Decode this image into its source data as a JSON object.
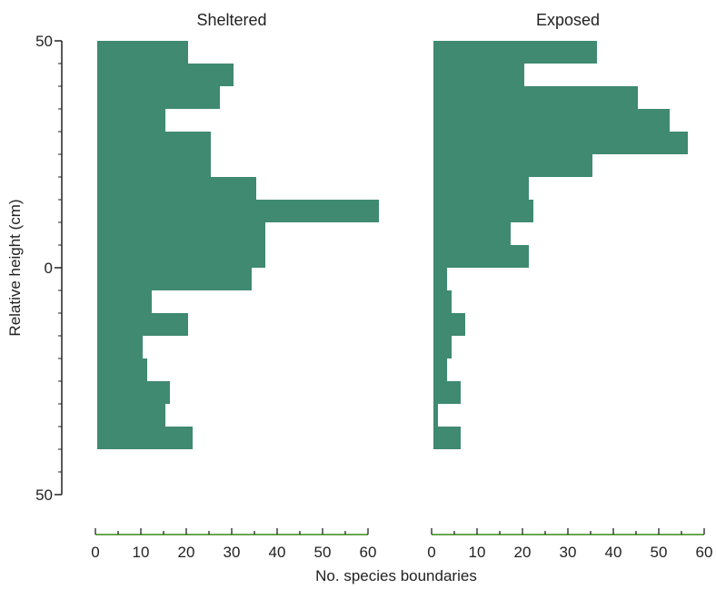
{
  "chart_data": {
    "type": "bar",
    "orientation": "horizontal",
    "bar_color": "#3f8a70",
    "axis_color": "#222222",
    "xaxis_color": "#6aa84f",
    "ylabel": "Relative height (cm)",
    "xlabel": "No. species boundaries",
    "ylim": [
      -50,
      50
    ],
    "yticks": [
      "50",
      "0",
      "50"
    ],
    "xlim": [
      0,
      60
    ],
    "xticks": [
      "0",
      "10",
      "20",
      "30",
      "40",
      "50",
      "60"
    ],
    "bin_width": 5,
    "bin_starts": [
      45,
      40,
      35,
      30,
      25,
      20,
      15,
      10,
      5,
      0,
      -5,
      -10,
      -15,
      -20,
      -25,
      -30,
      -35,
      -40
    ],
    "panels": [
      {
        "title": "Sheltered",
        "values": [
          20,
          30,
          27,
          15,
          25,
          25,
          35,
          62,
          37,
          37,
          34,
          12,
          20,
          10,
          11,
          16,
          15,
          21
        ]
      },
      {
        "title": "Exposed",
        "values": [
          36,
          20,
          45,
          52,
          56,
          35,
          21,
          22,
          17,
          21,
          3,
          4,
          7,
          4,
          3,
          6,
          1,
          6
        ]
      }
    ]
  }
}
